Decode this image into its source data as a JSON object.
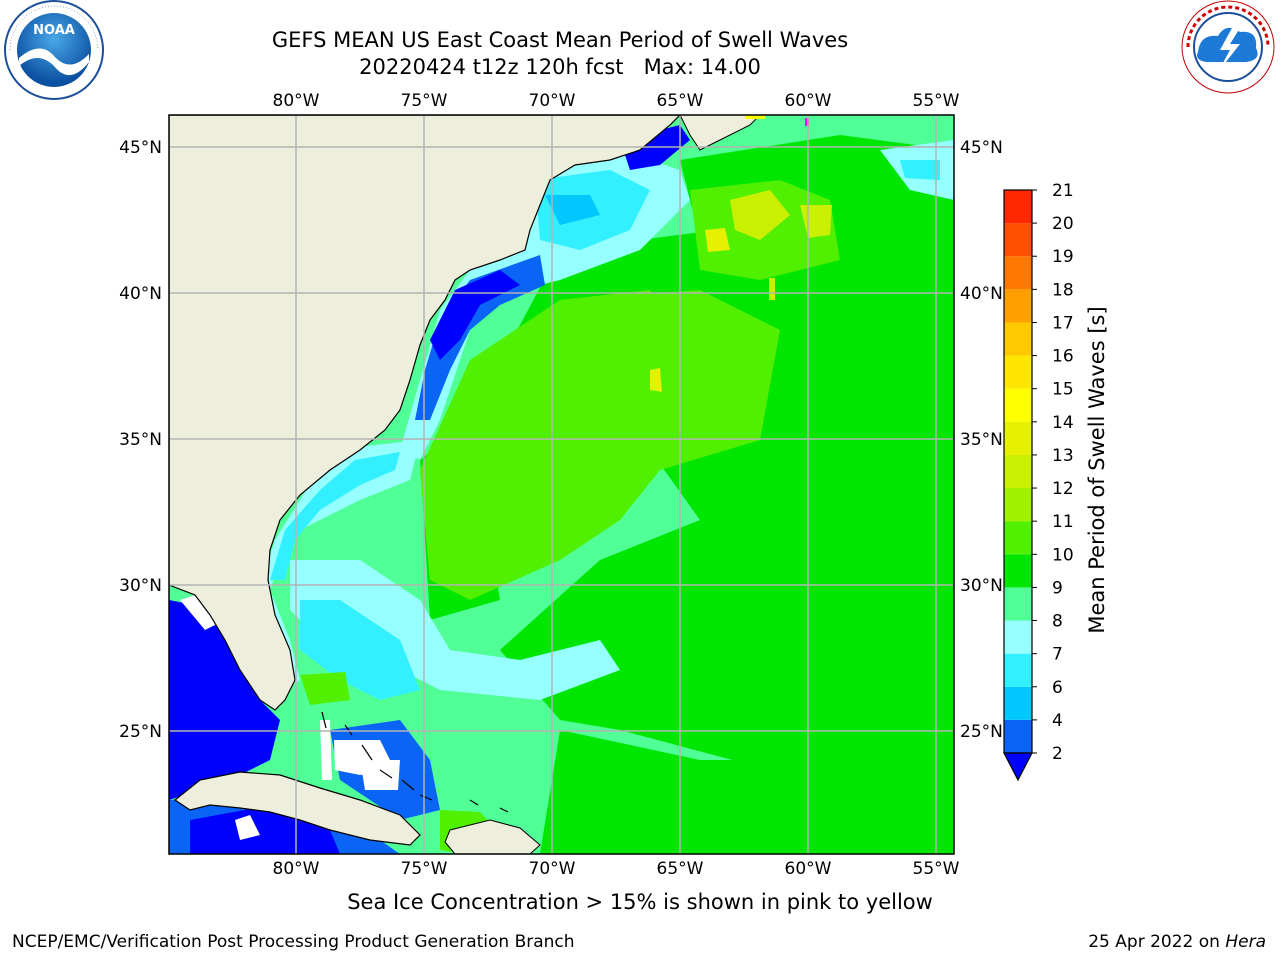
{
  "header": {
    "title_line1": "GEFS MEAN US East Coast Mean Period of Swell Waves",
    "title_line2": "20220424 t12z 120h fcst   Max: 14.00"
  },
  "logos": {
    "left": {
      "text": "NOAA",
      "ring_text": "NATIONAL OCEANIC AND ATMOSPHERIC ADMINISTRATION · U.S. DEPARTMENT OF COMMERCE"
    },
    "right": {
      "ring_text": "NATIONAL WEATHER SERVICE"
    }
  },
  "map": {
    "lon_labels": [
      "80°W",
      "75°W",
      "70°W",
      "65°W",
      "60°W",
      "55°W"
    ],
    "lat_labels": [
      "45°N",
      "40°N",
      "35°N",
      "30°N",
      "25°N"
    ],
    "lon_values": [
      -80,
      -75,
      -70,
      -65,
      -60,
      -55
    ],
    "lat_values": [
      45,
      40,
      35,
      30,
      25
    ],
    "extent": {
      "lon": [
        -85,
        -54.5
      ],
      "lat": [
        20,
        46
      ]
    },
    "colors": {
      "land": "#eeeedc",
      "grid": "#b4b4b4",
      "coast": "#000000",
      "ice": "#ff00ff"
    }
  },
  "colorbar": {
    "label": "Mean Period of Swell Waves [s]",
    "ticks": [
      "2",
      "4",
      "6",
      "7",
      "8",
      "9",
      "10",
      "11",
      "12",
      "13",
      "14",
      "15",
      "16",
      "17",
      "18",
      "19",
      "20",
      "21"
    ],
    "colors": [
      "#0a64f5",
      "#00c8ff",
      "#32f0ff",
      "#96ffff",
      "#50ff96",
      "#00e600",
      "#50f000",
      "#a0f000",
      "#c8f000",
      "#e6f000",
      "#ffff00",
      "#ffe600",
      "#ffc800",
      "#ffa000",
      "#ff7800",
      "#ff5000",
      "#ff2800",
      "#ff0000"
    ],
    "under_color": "#0000ff"
  },
  "subtitle": "Sea Ice Concentration > 15% is shown in pink to yellow",
  "footer": {
    "left": "NCEP/EMC/Verification Post Processing Product Generation Branch",
    "right_prefix": "25 Apr 2022 on ",
    "right_host": "Hera"
  }
}
